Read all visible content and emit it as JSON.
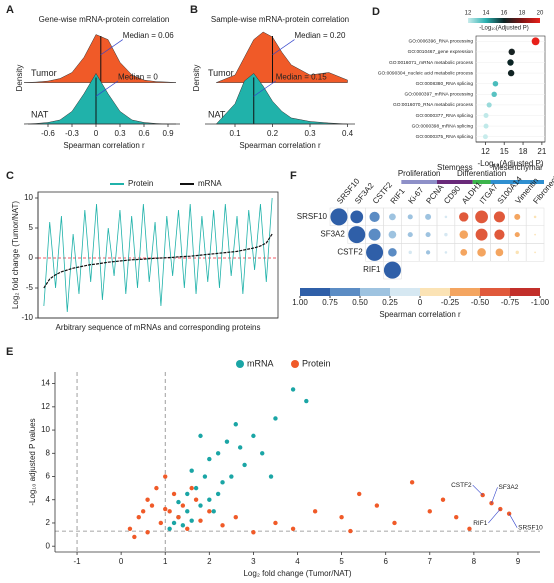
{
  "chart_data": [
    {
      "type": "ridge",
      "panel": "A",
      "title": "Gene-wise mRNA-protein correlation",
      "x_label": "Spearman correlation r",
      "y_label": "Density",
      "x": [
        -0.9,
        -0.75,
        -0.6,
        -0.45,
        -0.3,
        -0.15,
        0,
        0.15,
        0.3,
        0.45,
        0.6,
        0.75,
        0.9,
        1.0
      ],
      "series": [
        {
          "name": "Tumor",
          "color": "#f05a28",
          "values": [
            0,
            0.01,
            0.03,
            0.08,
            0.2,
            0.5,
            0.95,
            0.85,
            0.4,
            0.15,
            0.05,
            0.02,
            0.01,
            0
          ]
        },
        {
          "name": "NAT",
          "color": "#20b2aa",
          "values": [
            0,
            0.01,
            0.03,
            0.08,
            0.25,
            0.6,
            1.0,
            0.6,
            0.25,
            0.08,
            0.03,
            0.01,
            0,
            0
          ]
        }
      ],
      "medians": [
        0.06,
        0
      ],
      "annotations": [
        "Median = 0.06",
        "Median = 0"
      ],
      "xlim": [
        -0.85,
        1.05
      ],
      "xticks": [
        -0.6,
        -0.3,
        0,
        0.3,
        0.6,
        0.9
      ],
      "ylim": [
        0,
        1
      ]
    },
    {
      "type": "ridge",
      "panel": "B",
      "title": "Sample-wise mRNA-protein correlation",
      "x_label": "Spearman correlation r",
      "y_label": "Density",
      "x": [
        0.05,
        0.1,
        0.125,
        0.15,
        0.175,
        0.2,
        0.225,
        0.25,
        0.3,
        0.35,
        0.4
      ],
      "series": [
        {
          "name": "Tumor",
          "color": "#f05a28",
          "values": [
            0,
            0.15,
            0.5,
            0.85,
            1.0,
            0.9,
            0.6,
            0.35,
            0.15,
            0.2,
            0.05
          ]
        },
        {
          "name": "NAT",
          "color": "#20b2aa",
          "values": [
            0,
            0.4,
            0.85,
            1.0,
            0.75,
            0.45,
            0.25,
            0.12,
            0.05,
            0.02,
            0
          ]
        }
      ],
      "medians": [
        0.2,
        0.15
      ],
      "annotations": [
        "Median = 0.20",
        "Median = 0.15"
      ],
      "xlim": [
        0.02,
        0.42
      ],
      "xticks": [
        0.1,
        0.2,
        0.3,
        0.4
      ],
      "ylim": [
        0,
        1
      ]
    },
    {
      "type": "line",
      "panel": "C",
      "x_label": "Arbitrary sequence of mRNAs and corresponding proteins",
      "y_label": "Log₂ fold change (Tumor/NAT)",
      "x": [
        1,
        2,
        3,
        4,
        5,
        6,
        7,
        8,
        9,
        10,
        11,
        12,
        13,
        14,
        15,
        16,
        17,
        18,
        19,
        20,
        21,
        22,
        23,
        24,
        25,
        26,
        27,
        28,
        29,
        30,
        31,
        32,
        33,
        34,
        35,
        36,
        37,
        38,
        39,
        40
      ],
      "series": [
        {
          "name": "Protein",
          "color": "#20b2aa",
          "values": [
            -8,
            6,
            -5,
            7,
            -9,
            4,
            -6,
            8,
            -4,
            9,
            -7,
            5,
            -3,
            8,
            -6,
            7,
            -5,
            9,
            -4,
            6,
            -8,
            7,
            -3,
            8,
            -5,
            9,
            -6,
            7,
            -4,
            8,
            -5,
            9,
            -3,
            7,
            -6,
            8,
            -2,
            9,
            -4,
            10
          ]
        },
        {
          "name": "mRNA",
          "color": "#111111",
          "values": [
            -5,
            -3.5,
            -2.8,
            -2.3,
            -2,
            -1.7,
            -1.5,
            -1.3,
            -1.1,
            -1,
            -0.85,
            -0.7,
            -0.6,
            -0.5,
            -0.4,
            -0.3,
            -0.25,
            -0.2,
            -0.1,
            -0.05,
            0,
            0.05,
            0.1,
            0.2,
            0.25,
            0.3,
            0.4,
            0.5,
            0.6,
            0.7,
            0.8,
            0.9,
            1,
            1.1,
            1.3,
            1.5,
            1.7,
            2,
            2.5,
            4
          ]
        }
      ],
      "reference_line": 0,
      "xlim": [
        0,
        41
      ],
      "ylim": [
        -10,
        11
      ],
      "yticks": [
        -10,
        -5,
        0,
        5,
        10
      ]
    },
    {
      "type": "dot",
      "panel": "D",
      "x_label": "-Log₁₀(Adjusted P)",
      "categories": [
        "GO:0006396_RNA processing",
        "GO:0010467_gene expression",
        "GO:0016071_mRNA metabolic process",
        "GO:0090304_nucleic acid metabolic process",
        "GO:0008380_RNA splicing",
        "GO:0000397_mRNA processing",
        "GO:0016070_RNA metabolic process",
        "GO:0000377_RNA splicing",
        "GO:0000398_mRNA splicing",
        "GO:0000375_RNA splicing"
      ],
      "values": [
        20,
        16.2,
        16,
        16.1,
        13.6,
        13.4,
        12.6,
        12.1,
        12.1,
        12
      ],
      "xlim": [
        10.5,
        21.5
      ],
      "xticks": [
        12,
        15,
        18,
        21
      ],
      "colorbar": {
        "title": "-Log₁₀(Adjusted P)",
        "ticks": [
          12,
          14,
          16,
          18,
          20
        ],
        "colors": [
          "#c8ecec",
          "#2ab0b0",
          "#0b2424",
          "#801414",
          "#e8201a"
        ]
      }
    },
    {
      "type": "scatter",
      "panel": "E",
      "x_label": "Log₂ fold change (Tumor/NAT)",
      "y_label": "-Log₁₀ adjusted P values",
      "series": [
        {
          "name": "mRNA",
          "color": "#1aa5a5",
          "x": [
            1.1,
            1.2,
            1.3,
            1.4,
            1.5,
            1.5,
            1.6,
            1.7,
            1.8,
            1.9,
            2.0,
            2.0,
            2.1,
            2.2,
            2.3,
            2.4,
            2.5,
            2.6,
            2.8,
            3.0,
            3.2,
            3.5,
            3.9,
            4.2,
            1.3,
            1.6,
            1.8,
            2.2,
            2.7,
            3.4
          ],
          "values": [
            1.5,
            2,
            2.5,
            1.8,
            3,
            4.5,
            2.2,
            5,
            3.5,
            6,
            4,
            7.5,
            3,
            8,
            5.5,
            9,
            6,
            10.5,
            7,
            9.5,
            8,
            11,
            13.5,
            12.5,
            3.8,
            6.5,
            9.5,
            4.5,
            8.5,
            6
          ]
        },
        {
          "name": "Protein",
          "color": "#f05a28",
          "x": [
            0.2,
            0.4,
            0.5,
            0.6,
            0.7,
            0.8,
            0.9,
            1.0,
            1.1,
            1.2,
            1.3,
            1.4,
            1.5,
            1.6,
            1.8,
            2.0,
            2.3,
            2.6,
            3.0,
            3.5,
            3.9,
            4.4,
            5.0,
            5.4,
            5.8,
            6.2,
            6.6,
            7.0,
            7.3,
            7.6,
            7.9,
            8.2,
            8.4,
            8.6,
            8.8,
            0.3,
            0.6,
            1.0,
            1.7,
            5.2
          ],
          "values": [
            1.5,
            2.5,
            3,
            4,
            3.5,
            5,
            2,
            6,
            3,
            4.5,
            2.5,
            3.5,
            1.5,
            5,
            2.2,
            3,
            1.8,
            2.5,
            1.2,
            2,
            1.5,
            3,
            2.5,
            4.5,
            3.5,
            2,
            5.5,
            3,
            4,
            2.5,
            1.5,
            4.4,
            3.7,
            3.2,
            2.8,
            0.8,
            1.2,
            3.2,
            4,
            1.3
          ]
        }
      ],
      "annotations": [
        {
          "text": "CSTF2",
          "x": 8.2,
          "y": 4.4
        },
        {
          "text": "SF3A2",
          "x": 8.4,
          "y": 3.7
        },
        {
          "text": "RIF1",
          "x": 8.6,
          "y": 3.2
        },
        {
          "text": "SRSF10",
          "x": 8.8,
          "y": 2.8
        }
      ],
      "vlines": [
        -1,
        1
      ],
      "hline": 1.3,
      "xlim": [
        -1.5,
        9.5
      ],
      "xticks": [
        -1,
        0,
        1,
        2,
        3,
        4,
        5,
        6,
        7,
        8,
        9
      ],
      "ylim": [
        -0.5,
        15
      ],
      "yticks": [
        0,
        2,
        4,
        6,
        8,
        10,
        12,
        14
      ]
    },
    {
      "type": "corr",
      "panel": "F",
      "x_label": "Spearman correlation r",
      "rows": [
        "SRSF10",
        "SF3A2",
        "CSTF2",
        "RIF1"
      ],
      "columns": [
        "SRSF10",
        "SF3A2",
        "CSTF2",
        "RIF1",
        "Ki-67",
        "PCNA",
        "CD90",
        "ALDH1",
        "ITGA7",
        "S100A14",
        "Vimentin",
        "Fibronectin"
      ],
      "values": [
        [
          1,
          0.75,
          0.6,
          0.4,
          0.3,
          0.35,
          0.15,
          -0.55,
          -0.75,
          -0.65,
          -0.35,
          -0.15
        ],
        [
          null,
          1,
          0.7,
          0.45,
          0.3,
          0.3,
          0.2,
          -0.5,
          -0.7,
          -0.6,
          -0.3,
          -0.1
        ],
        [
          null,
          null,
          1,
          0.5,
          0.2,
          0.25,
          0.15,
          -0.4,
          -0.5,
          -0.45,
          -0.2,
          -0.1
        ],
        [
          null,
          null,
          null,
          1,
          null,
          null,
          null,
          null,
          null,
          null,
          null,
          null
        ]
      ],
      "groups": [
        {
          "name": "Proliferation",
          "span": [
            4,
            5
          ],
          "color": "#8e90c8"
        },
        {
          "name": "Stemness",
          "span": [
            6,
            7
          ],
          "color": "#6a2a7a"
        },
        {
          "name": "Differentiation",
          "span": [
            8,
            8
          ],
          "color": "#3cb44b"
        },
        {
          "name": "Mesenchymal",
          "span": [
            9,
            11
          ],
          "color": "#2f8fd0"
        }
      ],
      "colorbar": {
        "ticks": [
          {
            "value": 1,
            "label": "1.00"
          },
          {
            "value": 0.75,
            "label": "0.75"
          },
          {
            "value": 0.5,
            "label": "0.50"
          },
          {
            "value": 0.25,
            "label": "0.25"
          },
          0,
          {
            "value": -0.25,
            "label": "-0.25"
          },
          {
            "value": -0.5,
            "label": "-0.50"
          },
          {
            "value": -0.75,
            "label": "-0.75"
          },
          {
            "value": -1,
            "label": "-1.00"
          }
        ],
        "colors": [
          "#2f5fa8",
          "#5b8cc4",
          "#9ec3e0",
          "#d6e8f2",
          "#fbe3b5",
          "#f4a560",
          "#e0593b",
          "#c22f2a"
        ]
      }
    }
  ]
}
